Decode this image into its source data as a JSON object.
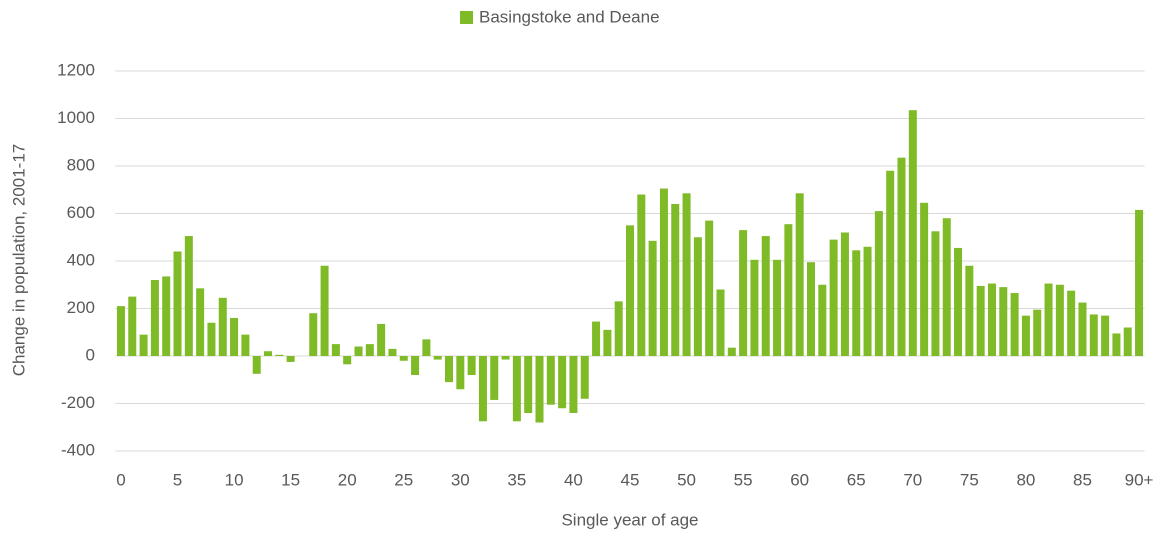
{
  "chart_data": {
    "type": "bar",
    "legend": "Basingstoke and Deane",
    "color": "#7fba27",
    "ylabel": "Change in population, 2001-17",
    "xlabel": "Single year of age",
    "categories": [
      "0",
      null,
      null,
      null,
      null,
      "5",
      null,
      null,
      null,
      null,
      "10",
      null,
      null,
      null,
      null,
      "15",
      null,
      null,
      null,
      null,
      "20",
      null,
      null,
      null,
      null,
      "25",
      null,
      null,
      null,
      null,
      "30",
      null,
      null,
      null,
      null,
      "35",
      null,
      null,
      null,
      null,
      "40",
      null,
      null,
      null,
      null,
      "45",
      null,
      null,
      null,
      null,
      "50",
      null,
      null,
      null,
      null,
      "55",
      null,
      null,
      null,
      null,
      "60",
      null,
      null,
      null,
      null,
      "65",
      null,
      null,
      null,
      null,
      "70",
      null,
      null,
      null,
      null,
      "75",
      null,
      null,
      null,
      null,
      "80",
      null,
      null,
      null,
      null,
      "85",
      null,
      null,
      null,
      null,
      "90+"
    ],
    "values": [
      210,
      250,
      90,
      320,
      335,
      440,
      505,
      285,
      140,
      245,
      160,
      90,
      -75,
      20,
      5,
      -25,
      0,
      180,
      380,
      50,
      -35,
      40,
      50,
      135,
      30,
      -20,
      -80,
      70,
      -15,
      -110,
      -140,
      -80,
      -275,
      -185,
      -15,
      -275,
      -240,
      -280,
      -205,
      -220,
      -240,
      -180,
      145,
      110,
      230,
      550,
      680,
      485,
      705,
      640,
      685,
      500,
      570,
      280,
      35,
      530,
      405,
      505,
      405,
      555,
      685,
      395,
      300,
      490,
      520,
      445,
      460,
      610,
      780,
      835,
      1035,
      645,
      525,
      580,
      455,
      380,
      295,
      305,
      290,
      265,
      170,
      195,
      305,
      300,
      275,
      225,
      175,
      170,
      95,
      120,
      615
    ],
    "ylim": [
      -400,
      1200
    ],
    "yticks": [
      -400,
      -200,
      0,
      200,
      400,
      600,
      800,
      1000,
      1200
    ],
    "grid": true
  }
}
